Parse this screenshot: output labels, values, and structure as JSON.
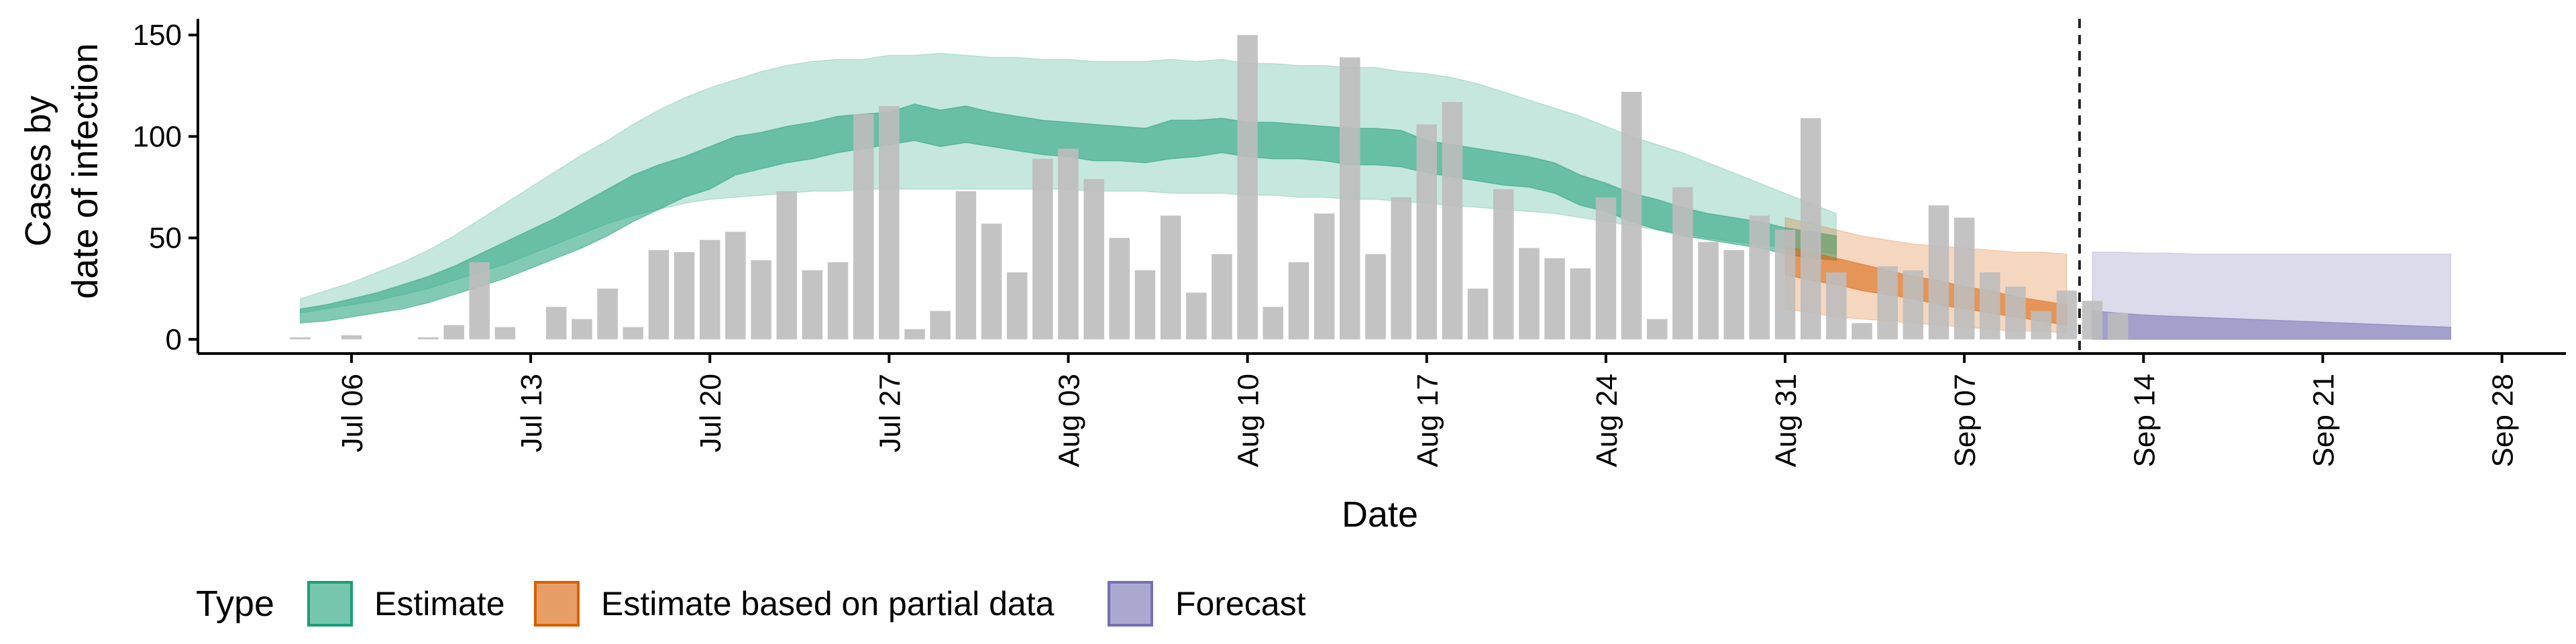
{
  "chart_data": {
    "type": "area",
    "xlabel": "Date",
    "ylabel_lines": [
      "Cases by",
      "date of infection"
    ],
    "y_ticks": [
      0,
      50,
      100,
      150
    ],
    "ylim": [
      -7,
      158
    ],
    "x_origin_date": "Jul 01",
    "x_range_days": [
      -1,
      91.5
    ],
    "x_ticks": [
      {
        "label": "Jul 06",
        "day": 5
      },
      {
        "label": "Jul 13",
        "day": 12
      },
      {
        "label": "Jul 20",
        "day": 19
      },
      {
        "label": "Jul 27",
        "day": 26
      },
      {
        "label": "Aug 03",
        "day": 33
      },
      {
        "label": "Aug 10",
        "day": 40
      },
      {
        "label": "Aug 17",
        "day": 47
      },
      {
        "label": "Aug 24",
        "day": 54
      },
      {
        "label": "Aug 31",
        "day": 61
      },
      {
        "label": "Sep 07",
        "day": 68
      },
      {
        "label": "Sep 14",
        "day": 75
      },
      {
        "label": "Sep 21",
        "day": 82
      },
      {
        "label": "Sep 28",
        "day": 89
      }
    ],
    "cutoff_day": 72.5,
    "reported_cases": {
      "start_day": 3,
      "values": [
        1,
        0,
        2,
        0,
        0,
        1,
        7,
        38,
        6,
        0,
        16,
        10,
        25,
        6,
        44,
        43,
        49,
        53,
        39,
        73,
        34,
        38,
        111,
        115,
        5,
        14,
        73,
        57,
        33,
        89,
        94,
        79,
        50,
        34,
        61,
        23,
        42,
        150,
        16,
        38,
        62,
        139,
        42,
        70,
        106,
        117,
        25,
        74,
        45,
        40,
        35,
        70,
        122,
        10,
        75,
        48,
        44,
        61,
        54,
        109,
        33,
        8,
        36,
        34,
        66,
        60,
        33,
        26,
        14,
        24,
        19,
        13
      ]
    },
    "estimate": {
      "start_day": 3,
      "end_day": 63,
      "lower90": [
        13,
        15,
        17,
        19,
        22,
        25,
        29,
        33,
        37,
        42,
        47,
        52,
        57,
        61,
        64,
        67,
        69,
        70,
        71,
        72,
        73,
        73,
        74,
        74,
        74,
        74,
        74,
        74,
        74,
        74,
        74,
        73,
        73,
        73,
        72,
        72,
        72,
        71,
        71,
        70,
        70,
        69,
        69,
        68,
        67,
        66,
        65,
        64,
        63,
        62,
        60,
        58,
        56,
        54,
        52,
        50,
        48,
        47,
        45,
        44,
        42
      ],
      "lower50": [
        8,
        9,
        11,
        13,
        15,
        18,
        22,
        26,
        30,
        35,
        40,
        45,
        51,
        58,
        64,
        70,
        74,
        81,
        84,
        87,
        89,
        92,
        94,
        96,
        98,
        95,
        97,
        95,
        93,
        91,
        90,
        88,
        88,
        87,
        89,
        90,
        92,
        90,
        89,
        89,
        88,
        86,
        86,
        85,
        82,
        80,
        78,
        76,
        75,
        72,
        66,
        63,
        58,
        54,
        51,
        49,
        47,
        45,
        42,
        40,
        39
      ],
      "upper50": [
        15,
        17,
        20,
        23,
        27,
        31,
        36,
        42,
        48,
        54,
        60,
        67,
        74,
        81,
        86,
        90,
        95,
        100,
        102,
        105,
        107,
        110,
        111,
        112,
        116,
        113,
        115,
        112,
        110,
        108,
        107,
        106,
        105,
        104,
        108,
        108,
        109,
        107,
        107,
        106,
        105,
        104,
        104,
        103,
        98,
        96,
        94,
        92,
        90,
        87,
        81,
        77,
        72,
        69,
        65,
        62,
        60,
        58,
        55,
        53,
        51
      ],
      "upper90": [
        20,
        24,
        28,
        33,
        38,
        44,
        51,
        59,
        67,
        75,
        83,
        91,
        98,
        106,
        113,
        119,
        124,
        128,
        132,
        135,
        137,
        138,
        138,
        140,
        140,
        141,
        140,
        139,
        139,
        138,
        138,
        137,
        137,
        137,
        138,
        137,
        138,
        136,
        136,
        135,
        135,
        134,
        134,
        132,
        131,
        129,
        126,
        122,
        118,
        114,
        110,
        105,
        100,
        96,
        92,
        87,
        82,
        77,
        72,
        67,
        62
      ]
    },
    "estimate_partial": {
      "start_day": 61,
      "end_day": 72,
      "lower90": [
        15,
        13,
        11,
        10,
        9,
        8,
        7,
        6,
        5,
        4,
        4,
        3
      ],
      "lower50": [
        32,
        29,
        27,
        24,
        22,
        20,
        17,
        15,
        13,
        11,
        9,
        7
      ],
      "upper50": [
        46,
        43,
        40,
        37,
        34,
        31,
        29,
        26,
        24,
        21,
        19,
        17
      ],
      "upper90": [
        60,
        57,
        54,
        51,
        49,
        47,
        46,
        45,
        44,
        43,
        43,
        42
      ]
    },
    "forecast": {
      "start_day": 73,
      "end_day": 87,
      "lower90": [
        0,
        0,
        0,
        0,
        0,
        0,
        0,
        0,
        0,
        0,
        0,
        0,
        0,
        0,
        0
      ],
      "lower50": [
        0,
        0,
        0,
        0,
        0,
        0,
        0,
        0,
        0,
        0,
        0,
        0,
        0,
        0,
        0
      ],
      "upper50": [
        14,
        13,
        12,
        11.5,
        11,
        10.5,
        10,
        9.5,
        9,
        8.5,
        8,
        7.5,
        7,
        6.5,
        6
      ],
      "upper90": [
        43,
        43,
        42.5,
        42.5,
        42,
        42,
        42,
        42,
        42,
        42,
        42,
        42,
        42,
        42,
        42
      ]
    },
    "legend": {
      "title": "Type",
      "items": [
        {
          "label": "Estimate",
          "color": "#1B9E77"
        },
        {
          "label": "Estimate based on partial data",
          "color": "#D95F02"
        },
        {
          "label": "Forecast",
          "color": "#7570B3"
        }
      ]
    },
    "colors": {
      "bars": "#bdbdbd",
      "estimate": "#1B9E77",
      "partial": "#D95F02",
      "forecast": "#7570B3",
      "axis": "#000000"
    }
  }
}
